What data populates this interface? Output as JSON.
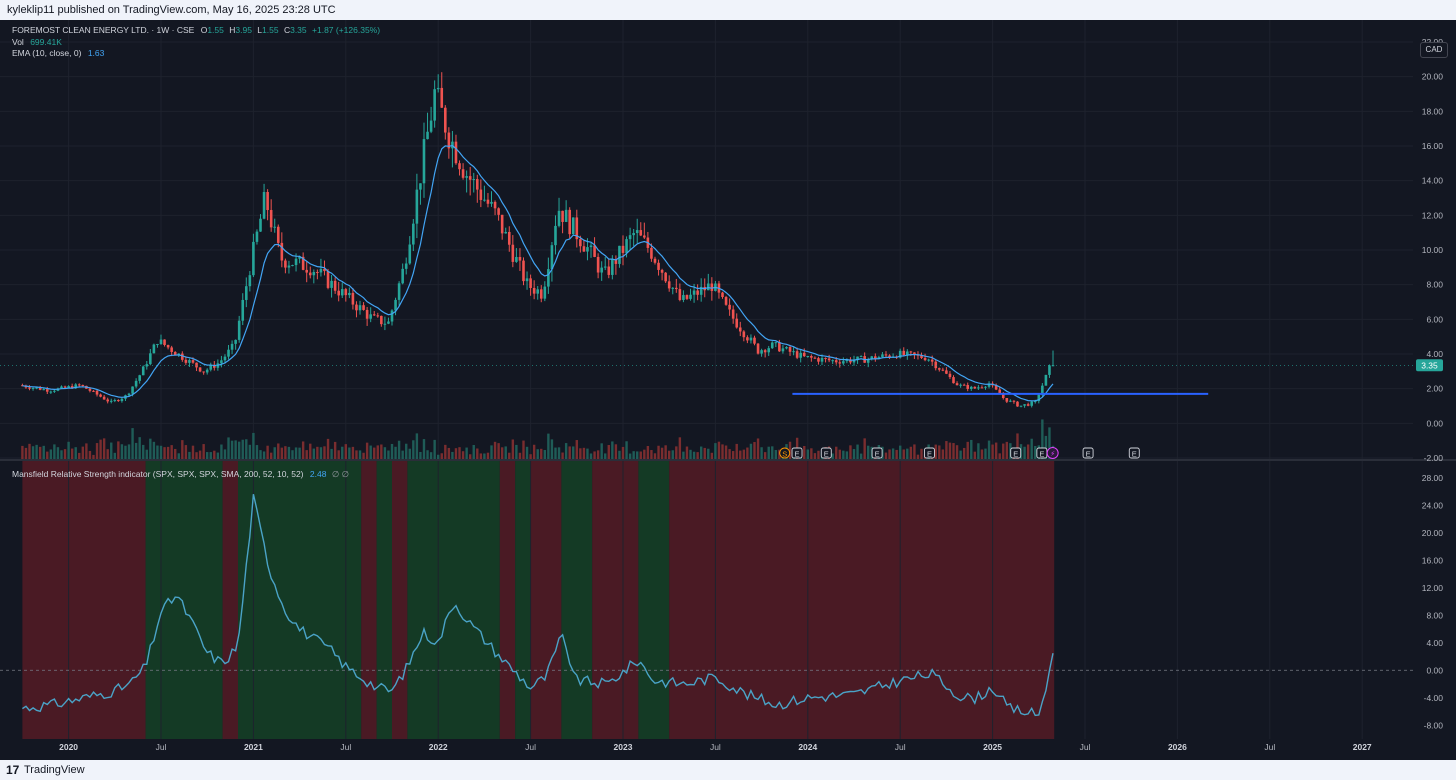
{
  "header": {
    "published_text": "kyleklip11 published on TradingView.com, May 16, 2025 23:28 UTC"
  },
  "footer": {
    "brand": "TradingView",
    "logo_glyph": "17"
  },
  "currency_badge": "CAD",
  "legend": {
    "symbol": "FOREMOST CLEAN ENERGY LTD. · 1W · CSE",
    "o_label": "O",
    "o_value": "1.55",
    "h_label": "H",
    "h_value": "3.95",
    "l_label": "L",
    "l_value": "1.55",
    "c_label": "C",
    "c_value": "3.35",
    "change": "+1.87 (+126.35%)",
    "vol_label": "Vol",
    "vol_value": "699.41K",
    "ema_label": "EMA (10, close, 0)",
    "ema_value": "1.63",
    "mrs_label": "Mansfield Relative Strength indicator (SPX, SPX, SPX, SMA, 200, 52, 10, 52)",
    "mrs_value": "2.48",
    "mrs_extra": "∅ ∅"
  },
  "colors": {
    "background": "#131722",
    "up": "#26a69a",
    "down": "#ef5350",
    "ema": "#42a5f5",
    "hline": "#2962ff",
    "mrs_line": "#4aa3c7",
    "mrs_positive_zone": "#143a25",
    "mrs_negative_zone": "#4a1a24"
  },
  "chart_data": [
    {
      "type": "candlestick",
      "timeframe": "1W",
      "price_axis": {
        "ticks": [
          "22.00",
          "20.00",
          "18.00",
          "16.00",
          "14.00",
          "12.00",
          "10.00",
          "8.00",
          "6.00",
          "4.00",
          "2.00",
          "0.00",
          "-2.00"
        ],
        "range": [
          -2,
          22
        ]
      },
      "last_price_label": "3.35",
      "ema_series_name": "EMA (10, close, 0)",
      "horizontal_line_price": 1.7,
      "horizontal_line_span": [
        "2023-12",
        "2026-03"
      ],
      "event_markers": [
        "S",
        "E",
        "E",
        "E",
        "E",
        "E",
        "E",
        "E",
        "E"
      ],
      "current_marker_glyph": "⚡",
      "close_path": [
        {
          "t": "2019-10",
          "c": 2.2
        },
        {
          "t": "2019-12",
          "c": 1.9
        },
        {
          "t": "2020-02",
          "c": 2.2
        },
        {
          "t": "2020-04",
          "c": 1.2
        },
        {
          "t": "2020-05",
          "c": 1.6
        },
        {
          "t": "2020-06",
          "c": 3.0
        },
        {
          "t": "2020-07",
          "c": 4.8
        },
        {
          "t": "2020-08",
          "c": 4.2
        },
        {
          "t": "2020-10",
          "c": 3.0
        },
        {
          "t": "2020-11",
          "c": 3.5
        },
        {
          "t": "2020-12",
          "c": 4.5
        },
        {
          "t": "2021-01",
          "c": 9.0
        },
        {
          "t": "2021-02",
          "c": 13.0
        },
        {
          "t": "2021-03",
          "c": 9.5
        },
        {
          "t": "2021-05",
          "c": 9.0
        },
        {
          "t": "2021-07",
          "c": 7.5
        },
        {
          "t": "2021-09",
          "c": 6.0
        },
        {
          "t": "2021-10",
          "c": 5.8
        },
        {
          "t": "2021-11",
          "c": 9.0
        },
        {
          "t": "2021-12",
          "c": 14.0
        },
        {
          "t": "2022-01",
          "c": 19.0
        },
        {
          "t": "2022-02",
          "c": 16.5
        },
        {
          "t": "2022-03",
          "c": 14.5
        },
        {
          "t": "2022-05",
          "c": 12.0
        },
        {
          "t": "2022-07",
          "c": 8.0
        },
        {
          "t": "2022-08",
          "c": 7.5
        },
        {
          "t": "2022-09",
          "c": 12.5
        },
        {
          "t": "2022-11",
          "c": 10.0
        },
        {
          "t": "2022-12",
          "c": 8.5
        },
        {
          "t": "2023-02",
          "c": 11.0
        },
        {
          "t": "2023-03",
          "c": 10.0
        },
        {
          "t": "2023-05",
          "c": 7.0
        },
        {
          "t": "2023-07",
          "c": 8.0
        },
        {
          "t": "2023-08",
          "c": 6.5
        },
        {
          "t": "2023-10",
          "c": 4.2
        },
        {
          "t": "2023-11",
          "c": 4.5
        },
        {
          "t": "2024-01",
          "c": 3.8
        },
        {
          "t": "2024-03",
          "c": 3.6
        },
        {
          "t": "2024-05",
          "c": 3.7
        },
        {
          "t": "2024-07",
          "c": 4.0
        },
        {
          "t": "2024-09",
          "c": 3.8
        },
        {
          "t": "2024-11",
          "c": 2.2
        },
        {
          "t": "2024-12",
          "c": 2.0
        },
        {
          "t": "2025-01",
          "c": 2.3
        },
        {
          "t": "2025-02",
          "c": 1.4
        },
        {
          "t": "2025-03",
          "c": 1.0
        },
        {
          "t": "2025-04",
          "c": 1.2
        },
        {
          "t": "2025-05",
          "c": 3.35
        }
      ],
      "x_axis": {
        "ticks": [
          "2020",
          "Jul",
          "2021",
          "Jul",
          "2022",
          "Jul",
          "2023",
          "Jul",
          "2024",
          "Jul",
          "2025",
          "Jul",
          "2026",
          "Jul",
          "2027"
        ]
      }
    },
    {
      "type": "line",
      "name": "Mansfield Relative Strength indicator (SPX, SPX, SPX, SMA, 200, 52, 10, 52)",
      "y_axis": {
        "ticks": [
          "28.00",
          "24.00",
          "20.00",
          "16.00",
          "12.00",
          "8.00",
          "4.00",
          "0.00",
          "-4.00",
          "-8.00"
        ],
        "range": [
          -10,
          30
        ]
      },
      "zero_line": 0,
      "last_value": 2.48,
      "points": [
        {
          "t": "2019-10",
          "v": -5.5
        },
        {
          "t": "2019-12",
          "v": -5.0
        },
        {
          "t": "2020-02",
          "v": -4.0
        },
        {
          "t": "2020-04",
          "v": -3.0
        },
        {
          "t": "2020-05",
          "v": -2.0
        },
        {
          "t": "2020-06",
          "v": 0.5
        },
        {
          "t": "2020-07",
          "v": 8.5
        },
        {
          "t": "2020-08",
          "v": 11.0
        },
        {
          "t": "2020-09",
          "v": 7.0
        },
        {
          "t": "2020-10",
          "v": 2.5
        },
        {
          "t": "2020-11",
          "v": 1.0
        },
        {
          "t": "2020-12",
          "v": 3.5
        },
        {
          "t": "2021-01",
          "v": 25.0
        },
        {
          "t": "2021-02",
          "v": 15.0
        },
        {
          "t": "2021-03",
          "v": 9.0
        },
        {
          "t": "2021-04",
          "v": 6.0
        },
        {
          "t": "2021-06",
          "v": 3.0
        },
        {
          "t": "2021-07",
          "v": 0.5
        },
        {
          "t": "2021-09",
          "v": -2.5
        },
        {
          "t": "2021-10",
          "v": -3.0
        },
        {
          "t": "2021-11",
          "v": 0.5
        },
        {
          "t": "2021-12",
          "v": 5.5
        },
        {
          "t": "2022-01",
          "v": 4.0
        },
        {
          "t": "2022-02",
          "v": 10.0
        },
        {
          "t": "2022-03",
          "v": 7.0
        },
        {
          "t": "2022-05",
          "v": 2.0
        },
        {
          "t": "2022-07",
          "v": -2.5
        },
        {
          "t": "2022-08",
          "v": -1.0
        },
        {
          "t": "2022-09",
          "v": 5.0
        },
        {
          "t": "2022-10",
          "v": -1.5
        },
        {
          "t": "2022-12",
          "v": -2.0
        },
        {
          "t": "2023-02",
          "v": 1.5
        },
        {
          "t": "2023-03",
          "v": -1.5
        },
        {
          "t": "2023-05",
          "v": -2.0
        },
        {
          "t": "2023-07",
          "v": -1.0
        },
        {
          "t": "2023-09",
          "v": -3.5
        },
        {
          "t": "2023-11",
          "v": -5.0
        },
        {
          "t": "2024-01",
          "v": -4.0
        },
        {
          "t": "2024-04",
          "v": -3.5
        },
        {
          "t": "2024-07",
          "v": -1.5
        },
        {
          "t": "2024-09",
          "v": -0.5
        },
        {
          "t": "2024-11",
          "v": -4.0
        },
        {
          "t": "2024-12",
          "v": -4.0
        },
        {
          "t": "2025-01",
          "v": -2.5
        },
        {
          "t": "2025-02",
          "v": -5.5
        },
        {
          "t": "2025-04",
          "v": -6.5
        },
        {
          "t": "2025-05",
          "v": 2.48
        }
      ],
      "zones": [
        {
          "from": "2019-10",
          "to": "2020-06",
          "state": "negative"
        },
        {
          "from": "2020-06",
          "to": "2020-11",
          "state": "positive"
        },
        {
          "from": "2020-11",
          "to": "2020-12",
          "state": "negative"
        },
        {
          "from": "2020-12",
          "to": "2021-08",
          "state": "positive"
        },
        {
          "from": "2021-08",
          "to": "2021-09",
          "state": "negative"
        },
        {
          "from": "2021-09",
          "to": "2021-10",
          "state": "positive"
        },
        {
          "from": "2021-10",
          "to": "2021-11",
          "state": "negative"
        },
        {
          "from": "2021-11",
          "to": "2022-05",
          "state": "positive"
        },
        {
          "from": "2022-05",
          "to": "2022-06",
          "state": "negative"
        },
        {
          "from": "2022-06",
          "to": "2022-07",
          "state": "positive"
        },
        {
          "from": "2022-07",
          "to": "2022-09",
          "state": "negative"
        },
        {
          "from": "2022-09",
          "to": "2022-11",
          "state": "positive"
        },
        {
          "from": "2022-11",
          "to": "2023-02",
          "state": "negative"
        },
        {
          "from": "2023-02",
          "to": "2023-04",
          "state": "positive"
        },
        {
          "from": "2023-04",
          "to": "2025-05",
          "state": "negative"
        }
      ]
    }
  ]
}
